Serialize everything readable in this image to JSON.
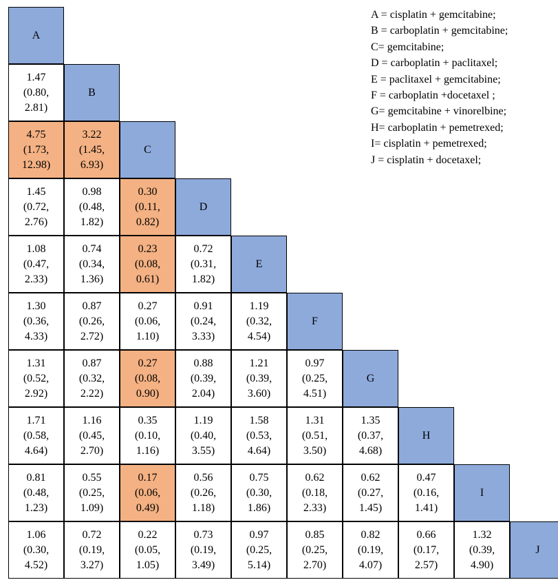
{
  "treatments": [
    "A",
    "B",
    "C",
    "D",
    "E",
    "F",
    "G",
    "H",
    "I",
    "J"
  ],
  "legend": [
    "A = cisplatin + gemcitabine;",
    "B = carboplatin + gemcitabine;",
    "C= gemcitabine;",
    "D = carboplatin + paclitaxel;",
    "E = paclitaxel + gemcitabine;",
    "F = carboplatin +docetaxel ;",
    "G= gemcitabine + vinorelbine;",
    "H= carboplatin + pemetrexed;",
    "I= cisplatin + pemetrexed;",
    "J = cisplatin + docetaxel;"
  ],
  "colors": {
    "diagonal": "#8eaadb",
    "significant": "#f4b183"
  },
  "rows": [
    [],
    [
      {
        "est": "1.47",
        "lo": "(0.80,",
        "hi": "2.81)",
        "sig": false
      }
    ],
    [
      {
        "est": "4.75",
        "lo": "(1.73,",
        "hi": "12.98)",
        "sig": true
      },
      {
        "est": "3.22",
        "lo": "(1.45,",
        "hi": "6.93)",
        "sig": true
      }
    ],
    [
      {
        "est": "1.45",
        "lo": "(0.72,",
        "hi": "2.76)",
        "sig": false
      },
      {
        "est": "0.98",
        "lo": "(0.48,",
        "hi": "1.82)",
        "sig": false
      },
      {
        "est": "0.30",
        "lo": "(0.11,",
        "hi": "0.82)",
        "sig": true
      }
    ],
    [
      {
        "est": "1.08",
        "lo": "(0.47,",
        "hi": "2.33)",
        "sig": false
      },
      {
        "est": "0.74",
        "lo": "(0.34,",
        "hi": "1.36)",
        "sig": false
      },
      {
        "est": "0.23",
        "lo": "(0.08,",
        "hi": "0.61)",
        "sig": true
      },
      {
        "est": "0.72",
        "lo": "(0.31,",
        "hi": "1.82)",
        "sig": false
      }
    ],
    [
      {
        "est": "1.30",
        "lo": "(0.36,",
        "hi": "4.33)",
        "sig": false
      },
      {
        "est": "0.87",
        "lo": "(0.26,",
        "hi": "2.72)",
        "sig": false
      },
      {
        "est": "0.27",
        "lo": "(0.06,",
        "hi": "1.10)",
        "sig": false
      },
      {
        "est": "0.91",
        "lo": "(0.24,",
        "hi": "3.33)",
        "sig": false
      },
      {
        "est": "1.19",
        "lo": "(0.32,",
        "hi": "4.54)",
        "sig": false
      }
    ],
    [
      {
        "est": "1.31",
        "lo": "(0.52,",
        "hi": "2.92)",
        "sig": false
      },
      {
        "est": "0.87",
        "lo": "(0.32,",
        "hi": "2.22)",
        "sig": false
      },
      {
        "est": "0.27",
        "lo": "(0.08,",
        "hi": "0.90)",
        "sig": true
      },
      {
        "est": "0.88",
        "lo": "(0.39,",
        "hi": "2.04)",
        "sig": false
      },
      {
        "est": "1.21",
        "lo": "(0.39,",
        "hi": "3.60)",
        "sig": false
      },
      {
        "est": "0.97",
        "lo": "(0.25,",
        "hi": "4.51)",
        "sig": false
      }
    ],
    [
      {
        "est": "1.71",
        "lo": "(0.58,",
        "hi": "4.64)",
        "sig": false
      },
      {
        "est": "1.16",
        "lo": "(0.45,",
        "hi": "2.70)",
        "sig": false
      },
      {
        "est": "0.35",
        "lo": "(0.10,",
        "hi": "1.16)",
        "sig": false
      },
      {
        "est": "1.19",
        "lo": "(0.40,",
        "hi": "3.55)",
        "sig": false
      },
      {
        "est": "1.58",
        "lo": "(0.53,",
        "hi": "4.64)",
        "sig": false
      },
      {
        "est": "1.31",
        "lo": "(0.51,",
        "hi": "3.50)",
        "sig": false
      },
      {
        "est": "1.35",
        "lo": "(0.37,",
        "hi": "4.68)",
        "sig": false
      }
    ],
    [
      {
        "est": "0.81",
        "lo": "(0.48,",
        "hi": "1.23)",
        "sig": false
      },
      {
        "est": "0.55",
        "lo": "(0.25,",
        "hi": "1.09)",
        "sig": false
      },
      {
        "est": "0.17",
        "lo": "(0.06,",
        "hi": "0.49)",
        "sig": true
      },
      {
        "est": "0.56",
        "lo": "(0.26,",
        "hi": "1.18)",
        "sig": false
      },
      {
        "est": "0.75",
        "lo": "(0.30,",
        "hi": "1.86)",
        "sig": false
      },
      {
        "est": "0.62",
        "lo": "(0.18,",
        "hi": "2.33)",
        "sig": false
      },
      {
        "est": "0.62",
        "lo": "(0.27,",
        "hi": "1.45)",
        "sig": false
      },
      {
        "est": "0.47",
        "lo": "(0.16,",
        "hi": "1.41)",
        "sig": false
      }
    ],
    [
      {
        "est": "1.06",
        "lo": "(0.30,",
        "hi": "4.52)",
        "sig": false
      },
      {
        "est": "0.72",
        "lo": "(0.19,",
        "hi": "3.27)",
        "sig": false
      },
      {
        "est": "0.22",
        "lo": "(0.05,",
        "hi": "1.05)",
        "sig": false
      },
      {
        "est": "0.73",
        "lo": "(0.19,",
        "hi": "3.49)",
        "sig": false
      },
      {
        "est": "0.97",
        "lo": "(0.25,",
        "hi": "5.14)",
        "sig": false
      },
      {
        "est": "0.85",
        "lo": "(0.25,",
        "hi": "2.70)",
        "sig": false
      },
      {
        "est": "0.82",
        "lo": "(0.19,",
        "hi": "4.07)",
        "sig": false
      },
      {
        "est": "0.66",
        "lo": "(0.17,",
        "hi": "2.57)",
        "sig": false
      },
      {
        "est": "1.32",
        "lo": "(0.39,",
        "hi": "4.90)",
        "sig": false
      }
    ]
  ]
}
